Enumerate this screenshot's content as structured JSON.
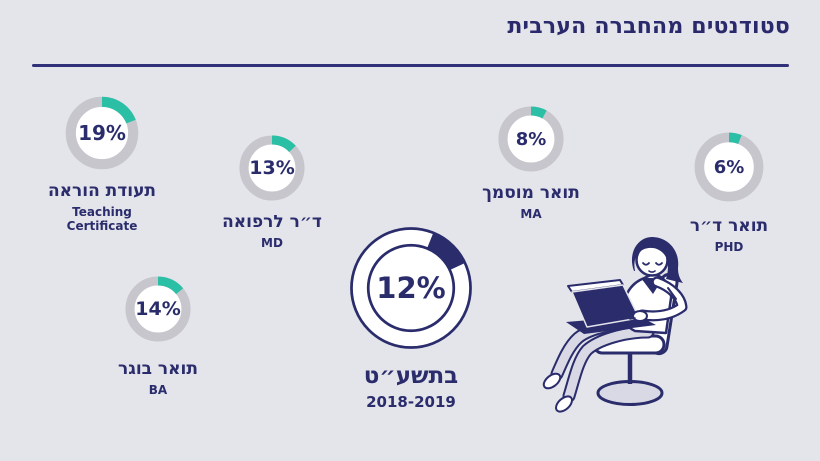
{
  "header": {
    "title": "סטודנטים מהחברה הערבית"
  },
  "colors": {
    "background": "#E4E4EB",
    "navy": "#2A2C6C",
    "teal": "#2BBFA5",
    "ring_gray": "#C6C6CC",
    "donut_inner": "#FFFFFF",
    "pants_gray": "#D9D9E5"
  },
  "chart_data": {
    "type": "pie",
    "variant": "donut-multiples",
    "title": "סטודנטים מהחברה הערבית",
    "unit": "%",
    "legend_position": "below-each-donut",
    "donuts": [
      {
        "id": "teaching-certificate",
        "value": 19,
        "value_label": "19%",
        "label_he": "תעודת הוראה",
        "label_en": "Teaching Certificate",
        "style": "teal"
      },
      {
        "id": "md",
        "value": 13,
        "value_label": "13%",
        "label_he": "ד״ר לרפואה",
        "label_en": "MD",
        "style": "teal"
      },
      {
        "id": "ma",
        "value": 8,
        "value_label": "8%",
        "label_he": "תואר מוסמך",
        "label_en": "MA",
        "style": "teal"
      },
      {
        "id": "phd",
        "value": 6,
        "value_label": "6%",
        "label_he": "תואר ד״ר",
        "label_en": "PHD",
        "style": "teal"
      },
      {
        "id": "ba",
        "value": 14,
        "value_label": "14%",
        "label_he": "תואר בוגר",
        "label_en": "BA",
        "style": "teal"
      },
      {
        "id": "total-2019",
        "value": 12,
        "value_label": "12%",
        "label_he": "בתשע״ט",
        "label_en": "2018-2019",
        "style": "navy-wedge",
        "wedge_start_deg": 22
      }
    ]
  },
  "illustration": {
    "description": "woman sitting on a swivel chair working on a laptop"
  }
}
